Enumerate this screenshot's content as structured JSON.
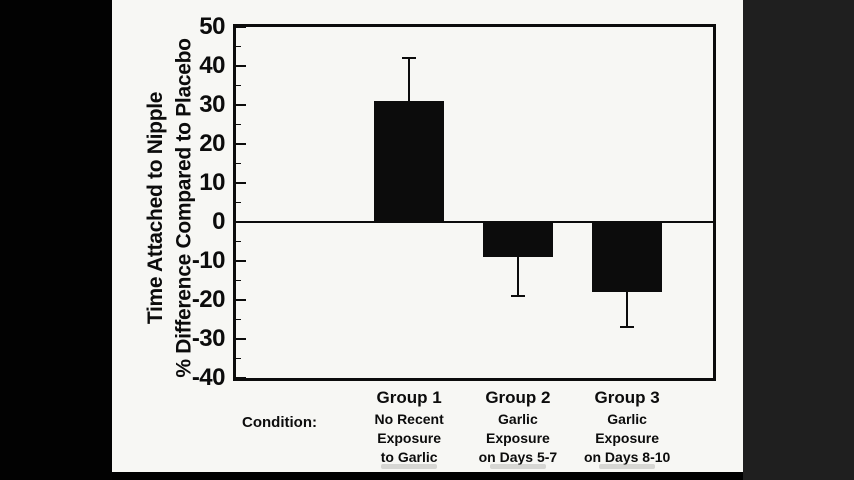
{
  "colors": {
    "background": "#000000",
    "letterbox_right": "#1f1f1f",
    "paper": "#f7f7f4",
    "ink": "#0c0c0c",
    "bar_color": "#0c0c0c"
  },
  "chart_data": {
    "type": "bar",
    "title": "",
    "ylabel_line1": "Time Attached to Nipple",
    "ylabel_line2": "% Difference Compared to Placebo",
    "ylim": [
      -40,
      50
    ],
    "yticks": [
      50,
      40,
      30,
      20,
      10,
      0,
      -10,
      -20,
      -30,
      -40
    ],
    "minor_tick_step": 5,
    "grid": false,
    "zero_line": true,
    "legend": null,
    "categories": [
      "Group 1",
      "Group 2",
      "Group 3"
    ],
    "values": [
      31,
      -9,
      -18
    ],
    "error_bars": {
      "direction": "away-from-zero",
      "values": [
        11,
        10,
        9
      ]
    },
    "condition_row_label": "Condition:",
    "conditions": [
      [
        "No Recent",
        "Exposure",
        "to Garlic"
      ],
      [
        "Garlic",
        "Exposure",
        "on Days 5-7"
      ],
      [
        "Garlic",
        "Exposure",
        "on Days 8-10"
      ]
    ]
  }
}
